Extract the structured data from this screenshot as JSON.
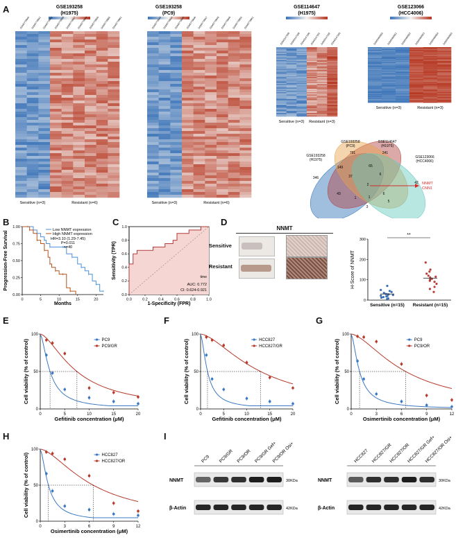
{
  "figure": {
    "panels": [
      "A",
      "B",
      "C",
      "D",
      "E",
      "F",
      "G",
      "H",
      "I"
    ]
  },
  "heatmaps": [
    {
      "title": "GSE193258",
      "subtitle": "(H1975)",
      "samples": [
        "GSM5778940",
        "GSM5778941",
        "GSM5778942",
        "GSM5778956",
        "GSM5778957",
        "GSM5778958",
        "GSM5778959",
        "GSM5778960",
        "GSM5778961"
      ],
      "n_sens": 3,
      "n_res": 6,
      "sens_label": "Sensitive (n=3)",
      "res_label": "Resistant (n=6)",
      "colors": [
        "#3c74b8",
        "#f4f2f0",
        "#b5351f"
      ]
    },
    {
      "title": "GSE193258",
      "subtitle": "(PC9)",
      "samples": [
        "GSM5778943",
        "GSM5778944",
        "GSM5778945",
        "GSM5778946",
        "GSM5778947",
        "GSM5778948",
        "GSM5778949",
        "GSM5778950",
        "GSM5778951"
      ],
      "n_sens": 3,
      "n_res": 6,
      "sens_label": "Sensitive (n=3)",
      "res_label": "Resistant (n=6)",
      "colors": [
        "#3c74b8",
        "#f4f2f0",
        "#b5351f"
      ]
    },
    {
      "title": "GSE114647",
      "subtitle": "(H1975)",
      "samples": [
        "GSM3147288",
        "GSM3147289",
        "GSM3147290",
        "GSM3147291",
        "GSM3147292",
        "GSM3147293"
      ],
      "n_sens": 3,
      "n_res": 3,
      "sens_label": "Sensitive (n=3)",
      "res_label": "Resistant (n=3)",
      "colors": [
        "#3c74b8",
        "#f4f2f0",
        "#b5351f"
      ]
    },
    {
      "title": "GSE123066",
      "subtitle": "(HCC4006)",
      "samples": [
        "GSM3494650",
        "GSM3494651",
        "GSM3494652",
        "GSM3494653",
        "GSM3494654",
        "GSM3494655"
      ],
      "n_sens": 3,
      "n_res": 3,
      "sens_label": "Sensitive (n=3)",
      "res_label": "Resistant (n=3)",
      "colors": [
        "#3c74b8",
        "#f4f2f0",
        "#b5351f"
      ]
    }
  ],
  "venn": {
    "sets": [
      {
        "name": "GSE193258",
        "sub": "(H1975)",
        "color": "#2d6eb5"
      },
      {
        "name": "GSE193258",
        "sub": "(PC9)",
        "color": "#b0413e"
      },
      {
        "name": "GSE114647",
        "sub": "(H1975)",
        "color": "#e8a14a"
      },
      {
        "name": "GSE123066",
        "sub": "(HCC4006)",
        "color": "#62c7bb"
      }
    ],
    "counts": [
      "346",
      "791",
      "241",
      "42",
      "149",
      "65",
      "6",
      "43",
      "37",
      "2",
      "6",
      "1",
      "1",
      "5",
      "3"
    ],
    "highlight": [
      "NNMT",
      "CNN1"
    ],
    "highlight_color": "#d62c2c"
  },
  "chart_data": [
    {
      "panel": "B",
      "type": "line",
      "subtype": "kaplan-meier",
      "xlabel": "Months",
      "ylabel": "Progression-Free Survival",
      "xlim": [
        0,
        22
      ],
      "ylim": [
        0,
        1
      ],
      "xticks": [
        0,
        5,
        10,
        15,
        20
      ],
      "yticks": [
        0,
        0.25,
        0.5,
        0.75,
        1.0
      ],
      "ytick_labels": [
        "0.00",
        "0.25",
        "0.50",
        "0.75",
        "1.00"
      ],
      "series": [
        {
          "name": "Low NNMT expression",
          "color": "#4a90d9",
          "x": [
            0,
            1.5,
            3,
            4,
            5,
            6,
            6.5,
            7.5,
            9,
            11,
            12,
            13.5,
            15,
            16,
            17,
            18,
            19,
            20,
            21,
            22
          ],
          "y": [
            1,
            1,
            0.95,
            0.9,
            0.85,
            0.8,
            0.75,
            0.7,
            0.7,
            0.7,
            0.6,
            0.55,
            0.45,
            0.4,
            0.35,
            0.3,
            0.2,
            0.15,
            0.05,
            0.05
          ]
        },
        {
          "name": "High NNMT expression",
          "color": "#b3531b",
          "x": [
            0,
            2,
            3,
            4,
            5,
            6,
            7,
            7.5,
            8,
            9,
            10,
            11,
            12,
            13,
            14.5
          ],
          "y": [
            1,
            0.95,
            0.9,
            0.8,
            0.75,
            0.65,
            0.55,
            0.45,
            0.4,
            0.35,
            0.3,
            0.3,
            0.1,
            0.05,
            0
          ]
        }
      ],
      "annotations": [
        "HR=3.10 (1.29-7.45)",
        "P=0.011",
        "n=40"
      ]
    },
    {
      "panel": "C",
      "type": "line",
      "subtype": "roc",
      "xlabel": "1-Specificity (FPR)",
      "ylabel": "Sensitivity (TPR)",
      "xlim": [
        0,
        1
      ],
      "ylim": [
        0,
        1
      ],
      "xticks": [
        0,
        0.2,
        0.4,
        0.6,
        0.8,
        1.0
      ],
      "xtick_labels": [
        "0.0",
        "0.2",
        "0.4",
        "0.6",
        "0.8",
        "1.0"
      ],
      "yticks": [
        0,
        0.2,
        0.4,
        0.6,
        0.8,
        1.0
      ],
      "ytick_labels": [
        "0.0",
        "0.2",
        "0.4",
        "0.6",
        "0.8",
        "1.0"
      ],
      "series": [
        {
          "name": "ROC",
          "color": "#b23a3a",
          "x": [
            0,
            0,
            0.05,
            0.05,
            0.1,
            0.1,
            0.3,
            0.3,
            0.45,
            0.45,
            0.55,
            0.55,
            0.6,
            0.6,
            0.75,
            0.75,
            0.9,
            0.9,
            1.0
          ],
          "y": [
            0,
            0.45,
            0.45,
            0.6,
            0.6,
            0.65,
            0.65,
            0.7,
            0.7,
            0.75,
            0.75,
            0.8,
            0.8,
            0.9,
            0.9,
            0.95,
            0.95,
            1.0,
            1.0
          ]
        }
      ],
      "legend_title": "time",
      "auc": "AUC: 0.772",
      "ci": "CI: 0.624-0.921"
    },
    {
      "panel": "D",
      "type": "scatter",
      "title": "NNMT",
      "ylabel": "H-Score of NNMT",
      "ylim": [
        0,
        300
      ],
      "yticks": [
        0,
        100,
        200,
        300
      ],
      "categories": [
        "Sensitive (n=15)",
        "Resistant (n=15)"
      ],
      "series": [
        {
          "name": "Sensitive (n=15)",
          "color": "#3a6fb5",
          "values": [
            5,
            8,
            12,
            15,
            18,
            20,
            22,
            25,
            28,
            30,
            35,
            40,
            45,
            50,
            70
          ],
          "mean": 30,
          "sem": 5
        },
        {
          "name": "Resistant (n=15)",
          "color": "#b8403a",
          "values": [
            40,
            55,
            65,
            80,
            90,
            95,
            100,
            105,
            110,
            115,
            120,
            130,
            140,
            150,
            185
          ],
          "mean": 108,
          "sem": 11
        }
      ],
      "significance": "**",
      "ihc_rows": [
        "Sensitive",
        "Resistant"
      ]
    },
    {
      "panel": "E",
      "type": "line",
      "xlabel": "Gefitinib concentration (μM)",
      "ylabel": "Cell viability (% of control)",
      "xlim": [
        0,
        20
      ],
      "ylim": [
        0,
        100
      ],
      "xticks": [
        0,
        5,
        10,
        15,
        20
      ],
      "yticks": [
        0,
        50,
        100
      ],
      "series": [
        {
          "name": "PC9",
          "color": "#3a78c2",
          "x": [
            0,
            1.25,
            2.5,
            5,
            10,
            15,
            20
          ],
          "y": [
            100,
            72,
            48,
            26,
            15,
            10,
            7
          ],
          "ic50": 2.0
        },
        {
          "name": "PC9/GR",
          "color": "#b63a2a",
          "x": [
            0,
            1.25,
            2.5,
            5,
            10,
            15,
            20
          ],
          "y": [
            100,
            92,
            88,
            74,
            28,
            22,
            16
          ],
          "ic50": 7.5
        }
      ]
    },
    {
      "panel": "F",
      "type": "line",
      "xlabel": "Gefitinib concentration (μM)",
      "ylabel": "Cell viability (% of control)",
      "xlim": [
        0,
        20
      ],
      "ylim": [
        0,
        100
      ],
      "xticks": [
        0,
        5,
        10,
        15,
        20
      ],
      "yticks": [
        0,
        50,
        100
      ],
      "series": [
        {
          "name": "HCC827",
          "color": "#3a78c2",
          "x": [
            0,
            1.25,
            2.5,
            5,
            10,
            15,
            20
          ],
          "y": [
            100,
            72,
            40,
            26,
            14,
            10,
            7
          ],
          "ic50": 1.5
        },
        {
          "name": "HCC827/GR",
          "color": "#b63a2a",
          "x": [
            0,
            1.25,
            2.5,
            5,
            10,
            15,
            20
          ],
          "y": [
            100,
            96,
            92,
            85,
            62,
            42,
            28
          ],
          "ic50": 13.0
        }
      ]
    },
    {
      "panel": "G",
      "type": "line",
      "xlabel": "Osimertinib concentration (μM)",
      "ylabel": "Cell viability (% of control)",
      "xlim": [
        0,
        12
      ],
      "ylim": [
        0,
        100
      ],
      "xticks": [
        0,
        3,
        6,
        9,
        12
      ],
      "yticks": [
        0,
        50,
        100
      ],
      "series": [
        {
          "name": "PC9",
          "color": "#3a78c2",
          "x": [
            0,
            0.75,
            1.5,
            3,
            6,
            9,
            12
          ],
          "y": [
            100,
            64,
            40,
            20,
            10,
            5,
            3
          ],
          "ic50": 1.0
        },
        {
          "name": "PC9/OR",
          "color": "#b63a2a",
          "x": [
            0,
            0.75,
            1.5,
            3,
            6,
            9,
            12
          ],
          "y": [
            100,
            97,
            96,
            90,
            60,
            18,
            12
          ],
          "ic50": 6.5
        }
      ]
    },
    {
      "panel": "H",
      "type": "line",
      "xlabel": "Osimertinib concentration (μM)",
      "ylabel": "Cell viability (% of control)",
      "xlim": [
        0,
        12
      ],
      "ylim": [
        0,
        100
      ],
      "xticks": [
        0,
        3,
        6,
        9,
        12
      ],
      "yticks": [
        0,
        50,
        100
      ],
      "series": [
        {
          "name": "HCC827",
          "color": "#3a78c2",
          "x": [
            0,
            0.75,
            1.5,
            3,
            6,
            9,
            12
          ],
          "y": [
            100,
            66,
            42,
            21,
            16,
            10,
            8
          ],
          "ic50": 1.0
        },
        {
          "name": "HCC827/OR",
          "color": "#b63a2a",
          "x": [
            0,
            0.75,
            1.5,
            3,
            6,
            9,
            12
          ],
          "y": [
            100,
            96,
            94,
            86,
            63,
            25,
            14
          ],
          "ic50": 6.5
        }
      ]
    }
  ],
  "western": [
    {
      "lanes": [
        "PC9",
        "PC9/GR",
        "PC9/OR",
        "PC9/GR Gef+",
        "PC9/OR Osi+"
      ],
      "rows": [
        {
          "name": "NNMT",
          "kda": "30KDa",
          "intensity": [
            0.55,
            0.8,
            0.85,
            0.95,
            0.95
          ]
        },
        {
          "name": "β-Actin",
          "kda": "42KDa",
          "intensity": [
            0.9,
            0.9,
            0.9,
            0.9,
            0.9
          ]
        }
      ]
    },
    {
      "lanes": [
        "HCC827",
        "HCC827/GR",
        "HCC827/OR",
        "HCC827/GR Gef+",
        "HCC827/OR Osi+"
      ],
      "rows": [
        {
          "name": "NNMT",
          "kda": "30KDa",
          "intensity": [
            0.6,
            0.85,
            0.85,
            0.95,
            0.85
          ]
        },
        {
          "name": "β-Actin",
          "kda": "42KDa",
          "intensity": [
            0.9,
            0.9,
            0.9,
            0.9,
            0.9
          ]
        }
      ]
    }
  ]
}
